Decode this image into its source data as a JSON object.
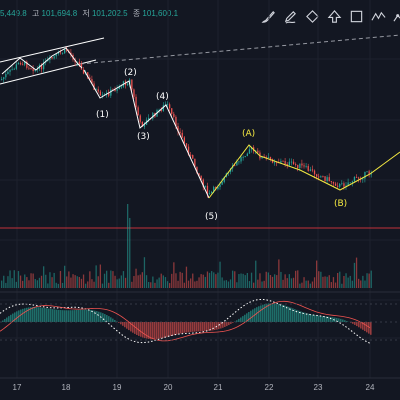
{
  "header": {
    "first": "5,449.8",
    "high_label": "고",
    "high": "101,694.8",
    "low_label": "저",
    "low": "101,202.5",
    "close_label": "종",
    "close": "101,600.1"
  },
  "toolbar": {
    "tools": [
      "brush-icon",
      "pencil-icon",
      "diamond-icon",
      "arrow-up-icon",
      "square-icon",
      "zigzag-icon",
      "polyline-icon"
    ]
  },
  "waves": {
    "impulse": [
      "(1)",
      "(2)",
      "(3)",
      "(4)",
      "(5)"
    ],
    "corrective": [
      "(A)",
      "(B)"
    ]
  },
  "x_axis": {
    "ticks": [
      "17",
      "18",
      "19",
      "20",
      "21",
      "22",
      "23",
      "24"
    ]
  },
  "colors": {
    "background": "#131722",
    "up": "#26a69a",
    "down": "#ef5350",
    "impulse_line": "#ffffff",
    "corrective_line": "#f5ea41",
    "horizontal_line": "#c2303a"
  }
}
